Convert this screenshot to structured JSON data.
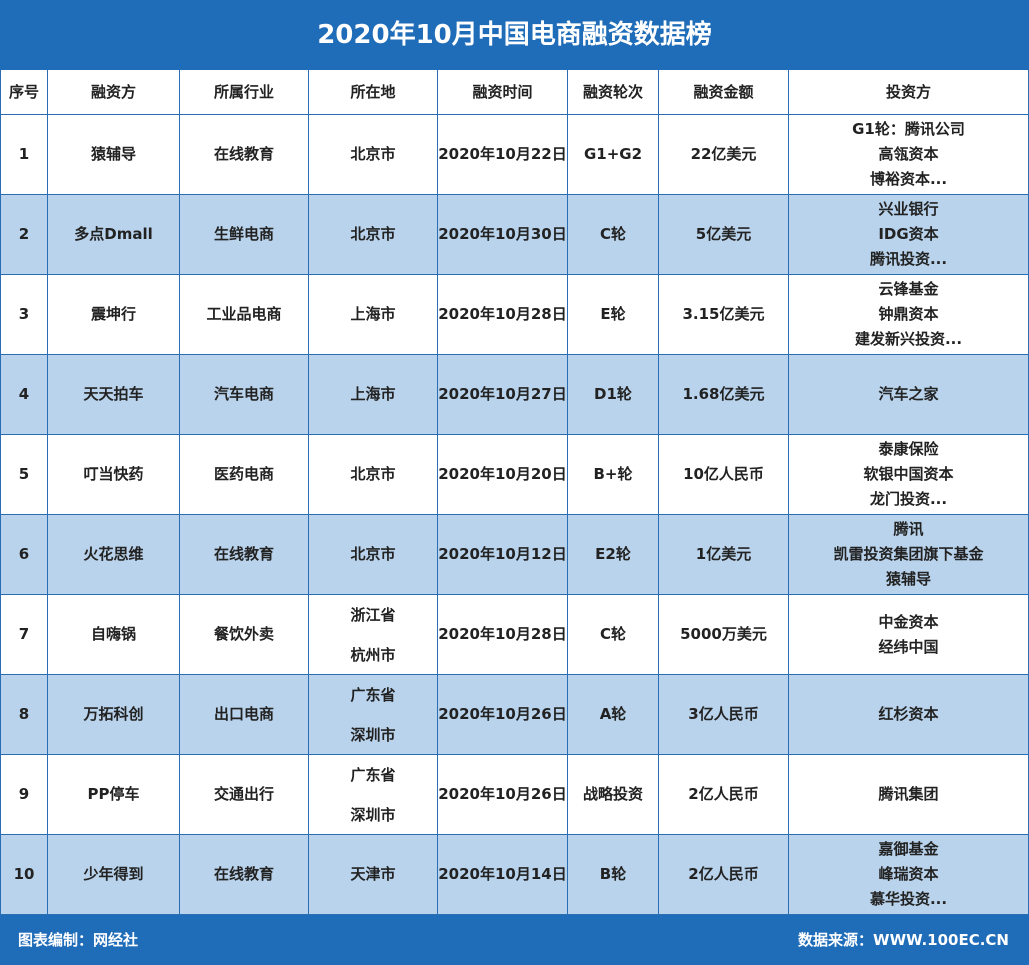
{
  "title": "2020年10月中国电商融资数据榜",
  "table": {
    "header": [
      "序号",
      "融资方",
      "所属行业",
      "所在地",
      "融资时间",
      "融资轮次",
      "融资金额",
      "投资方"
    ],
    "rows": [
      [
        1,
        "猿辅导",
        "在线教育",
        [
          "北京市"
        ],
        "2020年10月22日",
        "G1+G2",
        "22亿美元",
        [
          "G1轮：腾讯公司",
          "高瓴资本",
          "博裕资本..."
        ]
      ],
      [
        2,
        "多点Dmall",
        "生鲜电商",
        [
          "北京市"
        ],
        "2020年10月30日",
        "C轮",
        "5亿美元",
        [
          "兴业银行",
          "IDG资本",
          "腾讯投资..."
        ]
      ],
      [
        3,
        "震坤行",
        "工业品电商",
        [
          "上海市"
        ],
        "2020年10月28日",
        "E轮",
        "3.15亿美元",
        [
          "云锋基金",
          "钟鼎资本",
          "建发新兴投资..."
        ]
      ],
      [
        4,
        "天天拍车",
        "汽车电商",
        [
          "上海市"
        ],
        "2020年10月27日",
        "D1轮",
        "1.68亿美元",
        [
          "汽车之家"
        ]
      ],
      [
        5,
        "叮当快药",
        "医药电商",
        [
          "北京市"
        ],
        "2020年10月20日",
        "B+轮",
        "10亿人民币",
        [
          "泰康保险",
          "软银中国资本",
          "龙门投资..."
        ]
      ],
      [
        6,
        "火花思维",
        "在线教育",
        [
          "北京市"
        ],
        "2020年10月12日",
        "E2轮",
        "1亿美元",
        [
          "腾讯",
          "凯雷投资集团旗下基金",
          "猿辅导"
        ]
      ],
      [
        7,
        "自嗨锅",
        "餐饮外卖",
        [
          "浙江省",
          "杭州市"
        ],
        "2020年10月28日",
        "C轮",
        "5000万美元",
        [
          "中金资本",
          "经纬中国"
        ]
      ],
      [
        8,
        "万拓科创",
        "出口电商",
        [
          "广东省",
          "深圳市"
        ],
        "2020年10月26日",
        "A轮",
        "3亿人民币",
        [
          "红杉资本"
        ]
      ],
      [
        9,
        "PP停车",
        "交通出行",
        [
          "广东省",
          "深圳市"
        ],
        "2020年10月26日",
        "战略投资",
        "2亿人民币",
        [
          "腾讯集团"
        ]
      ],
      [
        10,
        "少年得到",
        "在线教育",
        [
          "天津市"
        ],
        "2020年10月14日",
        "B轮",
        "2亿人民币",
        [
          "嘉御基金",
          "峰瑞资本",
          "慕华投资..."
        ]
      ]
    ]
  },
  "footer": {
    "left": "图表编制：网经社",
    "right": "数据来源：WWW.100EC.CN"
  }
}
